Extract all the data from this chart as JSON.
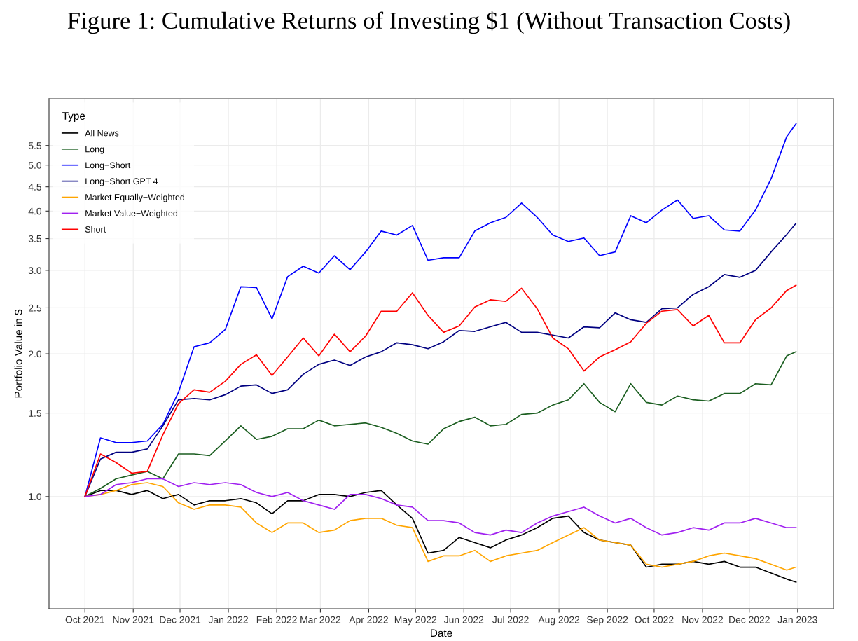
{
  "chart_data": {
    "type": "line",
    "title": "Figure 1: Cumulative Returns of Investing $1 (Without Transaction Costs)",
    "xlabel": "Date",
    "ylabel": "Portfolio Value in $",
    "legend_title": "Type",
    "legend": "top left",
    "grid": true,
    "log": "y",
    "line_style": "solid",
    "marker": "none",
    "x": [
      "2021-10-01",
      "2021-10-11",
      "2021-10-21",
      "2021-10-31",
      "2021-11-10",
      "2021-11-20",
      "2021-11-30",
      "2021-12-10",
      "2021-12-20",
      "2021-12-30",
      "2022-01-09",
      "2022-01-19",
      "2022-01-29",
      "2022-02-08",
      "2022-02-18",
      "2022-02-28",
      "2022-03-10",
      "2022-03-20",
      "2022-03-30",
      "2022-04-09",
      "2022-04-19",
      "2022-04-29",
      "2022-05-09",
      "2022-05-19",
      "2022-05-29",
      "2022-06-08",
      "2022-06-18",
      "2022-06-28",
      "2022-07-08",
      "2022-07-18",
      "2022-07-28",
      "2022-08-07",
      "2022-08-17",
      "2022-08-27",
      "2022-09-06",
      "2022-09-16",
      "2022-09-26",
      "2022-10-06",
      "2022-10-16",
      "2022-10-26",
      "2022-11-05",
      "2022-11-15",
      "2022-11-25",
      "2022-12-05",
      "2022-12-15",
      "2022-12-25",
      "2022-12-31"
    ],
    "series": [
      {
        "name": "All News",
        "color": "#000000",
        "values": [
          1.0,
          1.03,
          1.03,
          1.01,
          1.03,
          0.99,
          1.01,
          0.96,
          0.98,
          0.98,
          0.99,
          0.97,
          0.92,
          0.98,
          0.98,
          1.01,
          1.01,
          1.0,
          1.02,
          1.03,
          0.96,
          0.9,
          0.76,
          0.77,
          0.82,
          0.8,
          0.78,
          0.81,
          0.83,
          0.86,
          0.9,
          0.91,
          0.84,
          0.81,
          0.8,
          0.79,
          0.71,
          0.72,
          0.72,
          0.73,
          0.72,
          0.73,
          0.71,
          0.71,
          0.69,
          0.67,
          0.66
        ]
      },
      {
        "name": "Long",
        "color": "#1b5e20",
        "values": [
          1.0,
          1.04,
          1.09,
          1.11,
          1.13,
          1.09,
          1.23,
          1.23,
          1.22,
          1.31,
          1.41,
          1.32,
          1.34,
          1.39,
          1.39,
          1.45,
          1.41,
          1.42,
          1.43,
          1.4,
          1.36,
          1.31,
          1.29,
          1.39,
          1.44,
          1.47,
          1.41,
          1.42,
          1.49,
          1.5,
          1.56,
          1.6,
          1.73,
          1.58,
          1.51,
          1.73,
          1.58,
          1.56,
          1.63,
          1.6,
          1.59,
          1.65,
          1.65,
          1.73,
          1.72,
          1.98,
          2.02
        ]
      },
      {
        "name": "Long−Short",
        "color": "#0000ff",
        "values": [
          1.0,
          1.33,
          1.3,
          1.3,
          1.31,
          1.42,
          1.66,
          2.07,
          2.11,
          2.25,
          2.77,
          2.76,
          2.37,
          2.91,
          3.06,
          2.96,
          3.22,
          3.01,
          3.28,
          3.63,
          3.56,
          3.73,
          3.15,
          3.19,
          3.19,
          3.63,
          3.78,
          3.88,
          4.16,
          3.88,
          3.56,
          3.45,
          3.51,
          3.22,
          3.28,
          3.91,
          3.78,
          4.02,
          4.22,
          3.86,
          3.91,
          3.65,
          3.63,
          4.02,
          4.68,
          5.74,
          6.11
        ]
      },
      {
        "name": "Long−Short GPT 4",
        "color": "#000080",
        "values": [
          1.0,
          1.2,
          1.24,
          1.24,
          1.26,
          1.41,
          1.6,
          1.61,
          1.6,
          1.64,
          1.71,
          1.72,
          1.65,
          1.68,
          1.81,
          1.9,
          1.94,
          1.89,
          1.97,
          2.02,
          2.11,
          2.09,
          2.05,
          2.12,
          2.24,
          2.23,
          2.28,
          2.33,
          2.22,
          2.22,
          2.19,
          2.16,
          2.28,
          2.27,
          2.44,
          2.36,
          2.33,
          2.49,
          2.5,
          2.67,
          2.77,
          2.94,
          2.9,
          3.0,
          3.28,
          3.57,
          3.77
        ]
      },
      {
        "name": "Market Equally−Weighted",
        "color": "#ffa500",
        "values": [
          1.0,
          1.01,
          1.03,
          1.06,
          1.07,
          1.05,
          0.97,
          0.94,
          0.96,
          0.96,
          0.95,
          0.88,
          0.84,
          0.88,
          0.88,
          0.84,
          0.85,
          0.89,
          0.9,
          0.9,
          0.87,
          0.86,
          0.73,
          0.75,
          0.75,
          0.77,
          0.73,
          0.75,
          0.76,
          0.77,
          0.8,
          0.83,
          0.86,
          0.81,
          0.8,
          0.79,
          0.72,
          0.71,
          0.72,
          0.73,
          0.75,
          0.76,
          0.75,
          0.74,
          0.72,
          0.7,
          0.71
        ]
      },
      {
        "name": "Market Value−Weighted",
        "color": "#a020f0",
        "values": [
          1.0,
          1.01,
          1.06,
          1.07,
          1.09,
          1.09,
          1.05,
          1.07,
          1.06,
          1.07,
          1.06,
          1.02,
          1.0,
          1.02,
          0.98,
          0.96,
          0.94,
          1.01,
          1.01,
          0.99,
          0.96,
          0.95,
          0.89,
          0.89,
          0.88,
          0.84,
          0.83,
          0.85,
          0.84,
          0.88,
          0.91,
          0.93,
          0.95,
          0.91,
          0.88,
          0.9,
          0.86,
          0.83,
          0.84,
          0.86,
          0.85,
          0.88,
          0.88,
          0.9,
          0.88,
          0.86,
          0.86
        ]
      },
      {
        "name": "Short",
        "color": "#ff0000",
        "values": [
          1.0,
          1.23,
          1.18,
          1.12,
          1.13,
          1.35,
          1.57,
          1.68,
          1.66,
          1.75,
          1.9,
          1.99,
          1.8,
          1.97,
          2.16,
          1.98,
          2.2,
          2.02,
          2.18,
          2.46,
          2.46,
          2.69,
          2.41,
          2.22,
          2.29,
          2.51,
          2.6,
          2.58,
          2.75,
          2.49,
          2.16,
          2.05,
          1.84,
          1.97,
          2.04,
          2.12,
          2.32,
          2.46,
          2.48,
          2.29,
          2.41,
          2.11,
          2.11,
          2.36,
          2.5,
          2.72,
          2.79
        ]
      }
    ],
    "xlim": [
      "2021-09-08",
      "2023-01-24"
    ],
    "xticks": [
      {
        "value": "2021-10-01",
        "label": "Oct 2021"
      },
      {
        "value": "2021-11-01",
        "label": "Nov 2021"
      },
      {
        "value": "2021-12-01",
        "label": "Dec 2021"
      },
      {
        "value": "2022-01-01",
        "label": "Jan 2022"
      },
      {
        "value": "2022-02-01",
        "label": "Feb 2022"
      },
      {
        "value": "2022-03-01",
        "label": "Mar 2022"
      },
      {
        "value": "2022-04-01",
        "label": "Apr 2022"
      },
      {
        "value": "2022-05-01",
        "label": "May 2022"
      },
      {
        "value": "2022-06-01",
        "label": "Jun 2022"
      },
      {
        "value": "2022-07-01",
        "label": "Jul 2022"
      },
      {
        "value": "2022-08-01",
        "label": "Aug 2022"
      },
      {
        "value": "2022-09-01",
        "label": "Sep 2022"
      },
      {
        "value": "2022-10-01",
        "label": "Oct 2022"
      },
      {
        "value": "2022-11-01",
        "label": "Nov 2022"
      },
      {
        "value": "2022-12-01",
        "label": "Dec 2022"
      },
      {
        "value": "2023-01-01",
        "label": "Jan 2023"
      }
    ],
    "ylim": [
      0.58,
      6.9
    ],
    "yticks": [
      {
        "value": 1.0,
        "label": "1.0"
      },
      {
        "value": 1.5,
        "label": "1.5"
      },
      {
        "value": 2.0,
        "label": "2.0"
      },
      2.5,
      {
        "value": 3.0,
        "label": "3.0"
      },
      3.5,
      {
        "value": 4.0,
        "label": "4.0"
      },
      4.5,
      {
        "value": 5.0,
        "label": "5.0"
      },
      5.5
    ]
  }
}
